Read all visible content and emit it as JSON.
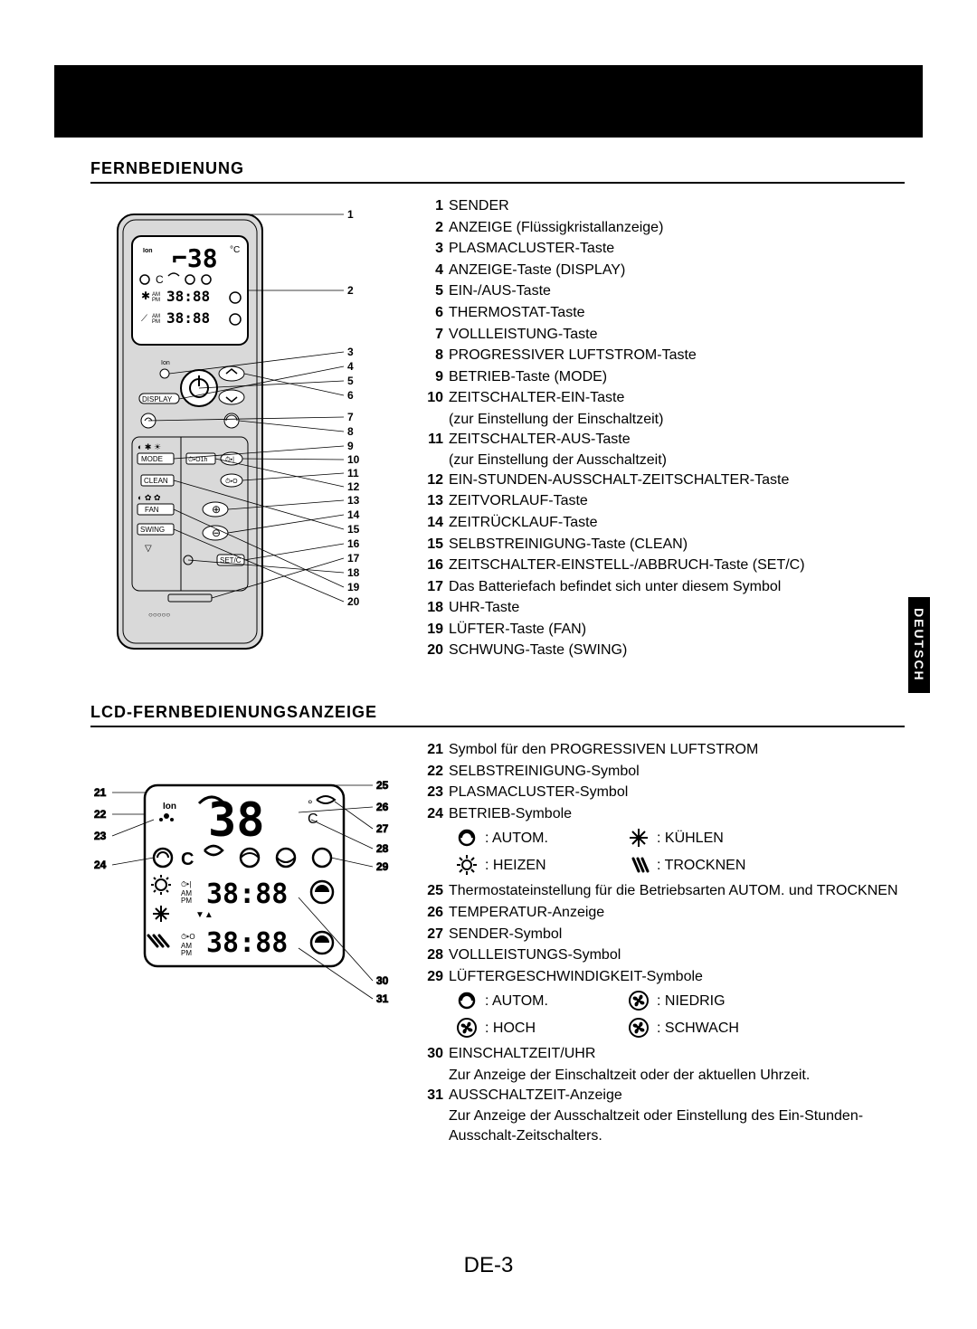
{
  "language_tab": "DEUTSCH",
  "page_number": "DE-3",
  "section1_title": "FERNBEDIENUNG",
  "section2_title": "LCD-FERNBEDIENUNGSANZEIGE",
  "remote_items": [
    {
      "n": "1",
      "t": "SENDER"
    },
    {
      "n": "2",
      "t": "ANZEIGE (Flüssigkristallanzeige)"
    },
    {
      "n": "3",
      "t": "PLASMACLUSTER-Taste"
    },
    {
      "n": "4",
      "t": "ANZEIGE-Taste (DISPLAY)"
    },
    {
      "n": "5",
      "t": "EIN-/AUS-Taste"
    },
    {
      "n": "6",
      "t": "THERMOSTAT-Taste"
    },
    {
      "n": "7",
      "t": "VOLLLEISTUNG-Taste"
    },
    {
      "n": "8",
      "t": "PROGRESSIVER LUFTSTROM-Taste"
    },
    {
      "n": "9",
      "t": "BETRIEB-Taste (MODE)"
    },
    {
      "n": "10",
      "t": "ZEITSCHALTER-EIN-Taste",
      "sub": "(zur Einstellung der Einschaltzeit)"
    },
    {
      "n": "11",
      "t": "ZEITSCHALTER-AUS-Taste",
      "sub": "(zur Einstellung der Ausschaltzeit)"
    },
    {
      "n": "12",
      "t": "EIN-STUNDEN-AUSSCHALT-ZEITSCHALTER-Taste"
    },
    {
      "n": "13",
      "t": "ZEITVORLAUF-Taste"
    },
    {
      "n": "14",
      "t": "ZEITRÜCKLAUF-Taste"
    },
    {
      "n": "15",
      "t": "SELBSTREINIGUNG-Taste (CLEAN)"
    },
    {
      "n": "16",
      "t": "ZEITSCHALTER-EINSTELL-/ABBRUCH-Taste (SET/C)"
    },
    {
      "n": "17",
      "t": "Das Batteriefach befindet sich unter diesem Symbol"
    },
    {
      "n": "18",
      "t": "UHR-Taste"
    },
    {
      "n": "19",
      "t": "LÜFTER-Taste (FAN)"
    },
    {
      "n": "20",
      "t": "SCHWUNG-Taste (SWING)"
    }
  ],
  "lcd_items_a": [
    {
      "n": "21",
      "t": "Symbol für den PROGRESSIVEN LUFTSTROM"
    },
    {
      "n": "22",
      "t": "SELBSTREINIGUNG-Symbol"
    },
    {
      "n": "23",
      "t": "PLASMACLUSTER-Symbol"
    },
    {
      "n": "24",
      "t": "BETRIEB-Symbole"
    }
  ],
  "mode_symbols": [
    {
      "icon": "autom",
      "label": ": AUTOM."
    },
    {
      "icon": "cool",
      "label": ": KÜHLEN"
    },
    {
      "icon": "heat",
      "label": ": HEIZEN"
    },
    {
      "icon": "dry",
      "label": ": TROCKNEN"
    }
  ],
  "lcd_items_b": [
    {
      "n": "25",
      "t": "Thermostateinstellung für die Betriebsarten AUTOM. und TROCKNEN"
    },
    {
      "n": "26",
      "t": "TEMPERATUR-Anzeige"
    },
    {
      "n": "27",
      "t": "SENDER-Symbol"
    },
    {
      "n": "28",
      "t": "VOLLLEISTUNGS-Symbol"
    },
    {
      "n": "29",
      "t": "LÜFTERGESCHWINDIGKEIT-Symbole"
    }
  ],
  "fan_symbols": [
    {
      "icon": "autom",
      "label": ": AUTOM."
    },
    {
      "icon": "fan3",
      "label": ": NIEDRIG"
    },
    {
      "icon": "fan1",
      "label": ": HOCH"
    },
    {
      "icon": "fan2",
      "label": ": SCHWACH"
    }
  ],
  "lcd_items_c": [
    {
      "n": "30",
      "t": "EINSCHALTZEIT/UHR",
      "sub": "Zur Anzeige der Einschaltzeit oder der aktuellen Uhrzeit."
    },
    {
      "n": "31",
      "t": "AUSSCHALTZEIT-Anzeige",
      "sub": "Zur Anzeige der Ausschaltzeit oder Einstellung des Ein-Stunden-Ausschalt-Zeitschalters."
    }
  ],
  "remote_labels": {
    "display": "DISPLAY",
    "mode": "MODE",
    "timer1h": "⏱▸O1h",
    "clean": "CLEAN",
    "fan": "FAN",
    "swing": "SWING",
    "setc": "SET/C"
  },
  "diagram_numbers_right": [
    "1",
    "2",
    "3",
    "4",
    "5",
    "6",
    "7",
    "8",
    "9",
    "10",
    "11",
    "12",
    "13",
    "14",
    "15",
    "16",
    "17",
    "18",
    "19",
    "20"
  ],
  "lcd_numbers_left": [
    "21",
    "22",
    "23",
    "24"
  ],
  "lcd_numbers_right": [
    "25",
    "26",
    "27",
    "28",
    "29",
    "30",
    "31"
  ],
  "colors": {
    "page_bg": "#ffffff",
    "text": "#000000",
    "remote_body": "#d9d9d9",
    "remote_border": "#000000",
    "lcd_bg": "#ffffff"
  }
}
